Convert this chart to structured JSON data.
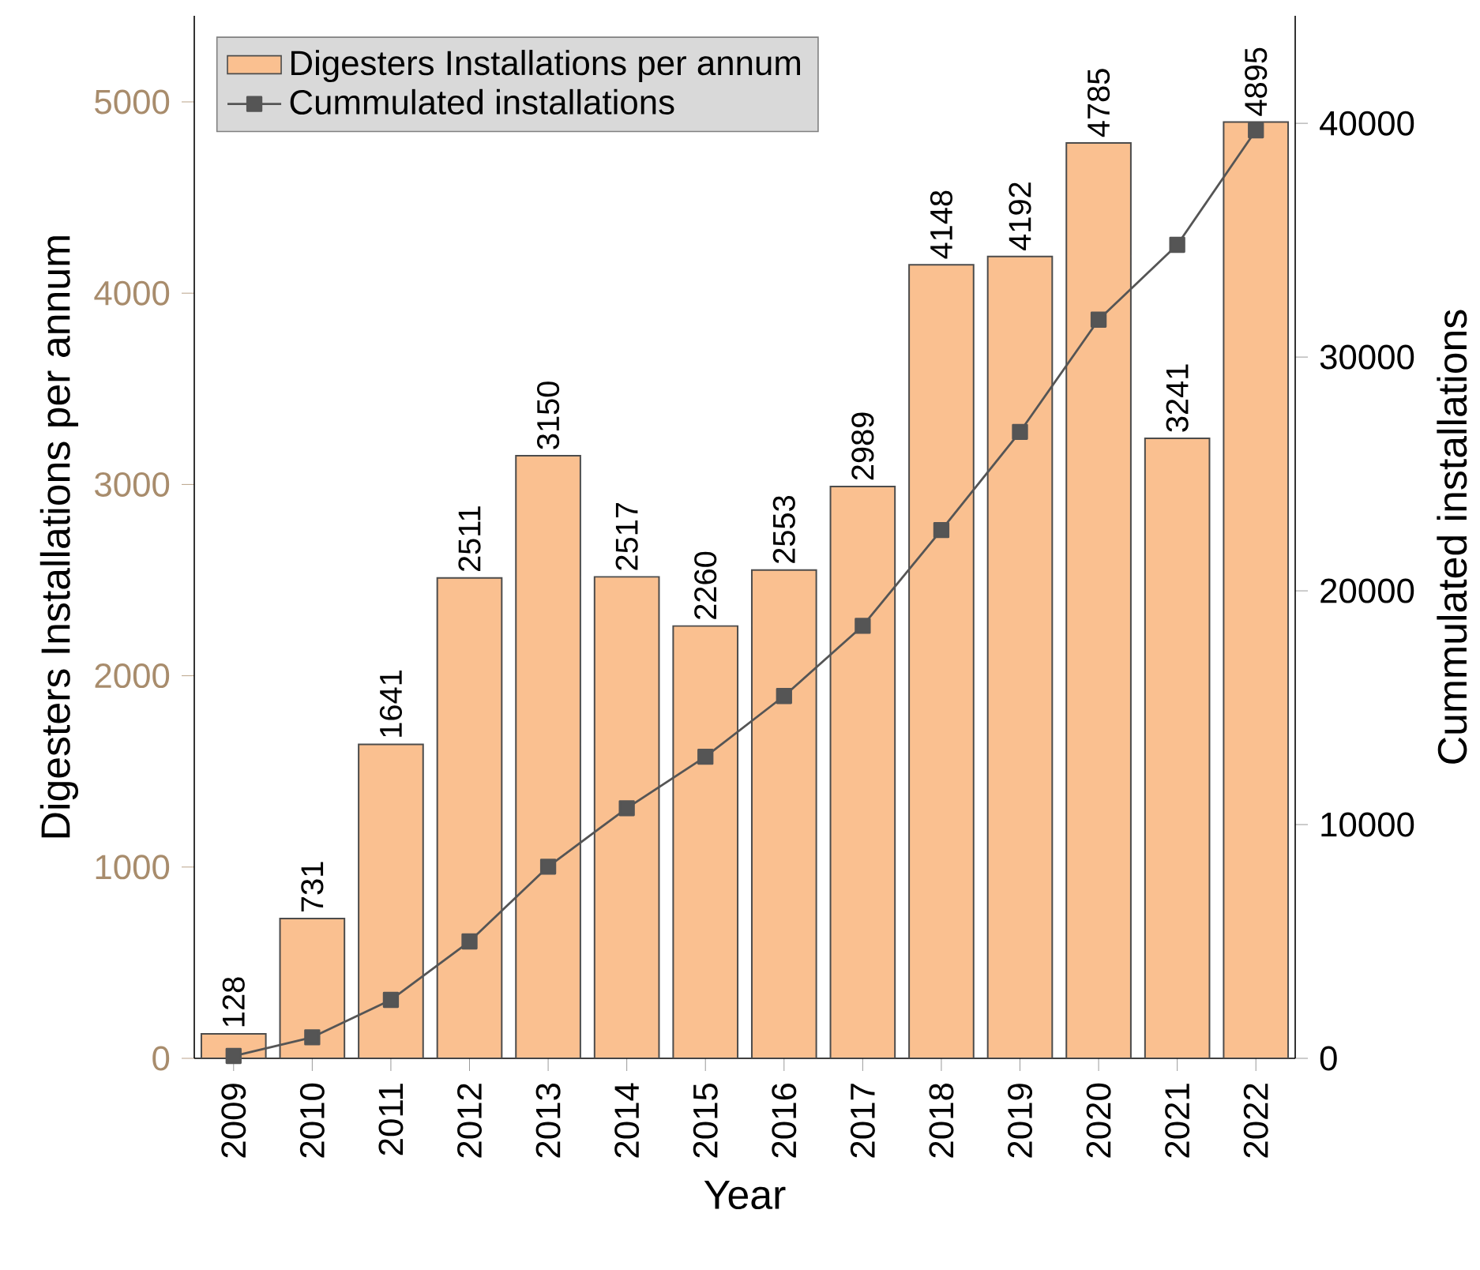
{
  "chart_data": {
    "type": "bar",
    "xlabel": "Year",
    "ylabel": "Digesters Installations per annum",
    "y2label": "Cummulated installations",
    "categories": [
      "2009",
      "2010",
      "2011",
      "2012",
      "2013",
      "2014",
      "2015",
      "2016",
      "2017",
      "2018",
      "2019",
      "2020",
      "2021",
      "2022"
    ],
    "series": [
      {
        "name": "Digesters Installations per annum",
        "color": "#fac090",
        "values": [
          128,
          731,
          1641,
          2511,
          3150,
          2517,
          2260,
          2553,
          2989,
          4148,
          4192,
          4785,
          3241,
          4895
        ],
        "value_labels": [
          "128",
          "731",
          "1641",
          "2511",
          "3150",
          "2517",
          "2260",
          "2553",
          "2989",
          "4148",
          "4192",
          "4785",
          "3241",
          "4895"
        ]
      },
      {
        "name": "Cummulated installations",
        "type": "line",
        "axis": "y2",
        "color": "#555555",
        "marker": "square",
        "values": [
          100,
          900,
          2500,
          5000,
          8200,
          10700,
          12900,
          15500,
          18500,
          22600,
          26800,
          31600,
          34800,
          39700
        ]
      }
    ],
    "ylim": [
      0,
      5450
    ],
    "yticks": [
      0,
      1000,
      2000,
      3000,
      4000,
      5000
    ],
    "y2lim": [
      0,
      44600
    ],
    "y2ticks": [
      0,
      10000,
      20000,
      30000,
      40000
    ],
    "legend": "top left",
    "grid": false
  }
}
